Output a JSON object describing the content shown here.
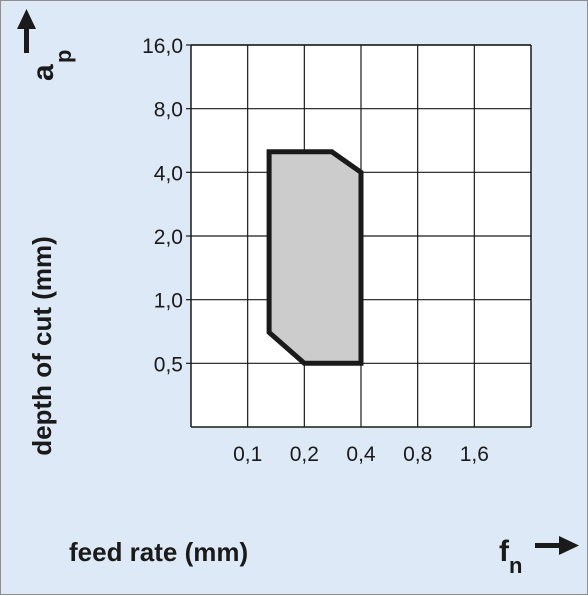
{
  "chart_data": {
    "type": "area",
    "xlabel": "feed rate (mm)",
    "ylabel": "depth of cut (mm)",
    "x_symbol": "f",
    "x_symbol_sub": "n",
    "y_symbol": "a",
    "y_symbol_sub": "p",
    "x_scale": "log2",
    "y_scale": "log2",
    "xlim": [
      0.05,
      3.2
    ],
    "ylim": [
      0.25,
      16
    ],
    "x_ticks": [
      0.1,
      0.2,
      0.4,
      0.8,
      1.6
    ],
    "x_tick_labels": [
      "0,1",
      "0,2",
      "0,4",
      "0,8",
      "1,6"
    ],
    "y_ticks": [
      0.5,
      1.0,
      2.0,
      4.0,
      8.0,
      16.0
    ],
    "y_tick_labels": [
      "0,5",
      "1,0",
      "2,0",
      "4,0",
      "8,0",
      "16,0"
    ],
    "grid": true,
    "region": {
      "fill": "#cccccc",
      "stroke": "#1a1a1a",
      "points": [
        {
          "x": 0.13,
          "y": 5.0
        },
        {
          "x": 0.28,
          "y": 5.0
        },
        {
          "x": 0.4,
          "y": 4.0
        },
        {
          "x": 0.4,
          "y": 0.5
        },
        {
          "x": 0.2,
          "y": 0.5
        },
        {
          "x": 0.13,
          "y": 0.7
        }
      ]
    }
  },
  "colors": {
    "background": "#dde9f7",
    "plot_background": "#ffffff",
    "grid": "#1a1a1a",
    "text": "#1a1a1a"
  }
}
